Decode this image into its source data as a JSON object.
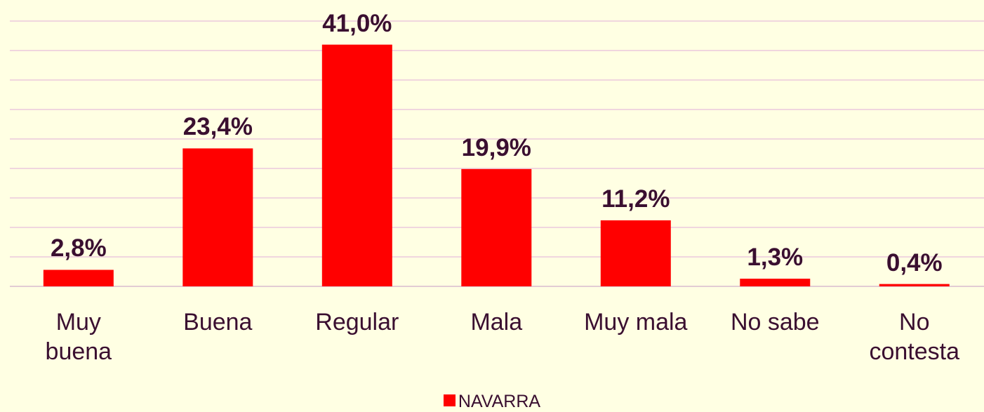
{
  "chart_data": {
    "type": "bar",
    "categories": [
      "Muy\nbuena",
      "Buena",
      "Regular",
      "Mala",
      "Muy mala",
      "No sabe",
      "No\ncontesta"
    ],
    "series": [
      {
        "name": "NAVARRA",
        "color": "#ff0000",
        "values": [
          2.8,
          23.4,
          41.0,
          19.9,
          11.2,
          1.3,
          0.4
        ],
        "value_labels": [
          "2,8%",
          "23,4%",
          "41,0%",
          "19,9%",
          "11,2%",
          "1,3%",
          "0,4%"
        ]
      }
    ],
    "ylim": [
      0,
      45
    ],
    "yticks": [
      0,
      5,
      10,
      15,
      20,
      25,
      30,
      35,
      40,
      45
    ],
    "grid": true
  }
}
